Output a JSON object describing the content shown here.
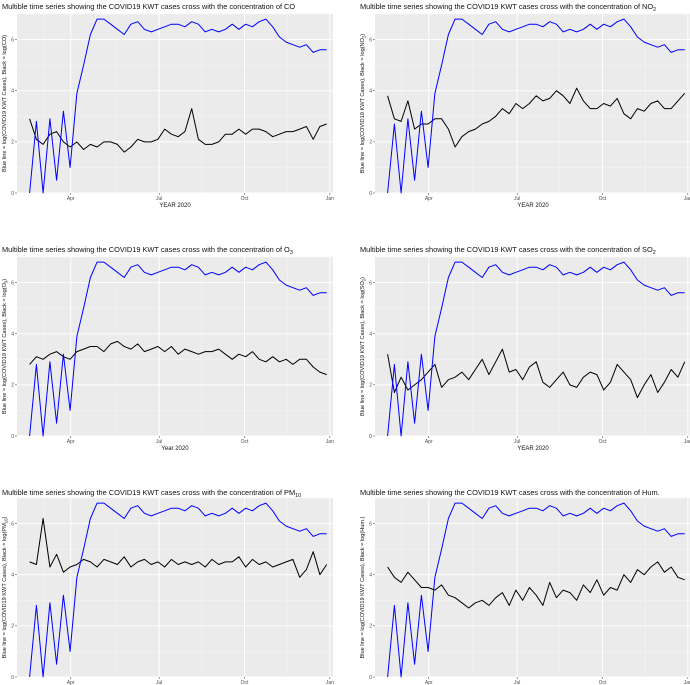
{
  "colors": {
    "panel_bg": "#ebebeb",
    "grid_major": "#ffffff",
    "grid_minor": "#f5f5f5",
    "cases_line": "#0000ff",
    "pollutant_line": "#000000"
  },
  "chart_data": [
    {
      "type": "line",
      "title": "Multible time series showing the COVID19 KWT cases cross with the concentration of CO",
      "xlabel": "YEAR 2020",
      "ylabel": "Blue line = log(COVID19 KWT Cases), Black = log(CO)",
      "x_ticks": [
        "Apr",
        "Jul",
        "Oct",
        "Jan"
      ],
      "y_ticks": [
        "0",
        "2",
        "4",
        "6"
      ],
      "ylim": [
        0,
        7
      ],
      "series": [
        {
          "values": [
            2.9,
            2.1,
            1.9,
            2.3,
            2.4,
            2.0,
            1.8,
            2.0,
            1.7,
            1.9,
            1.8,
            2.0,
            2.0,
            1.9,
            1.6,
            1.8,
            2.1,
            2.0,
            2.0,
            2.1,
            2.5,
            2.3,
            2.2,
            2.4,
            3.3,
            2.1,
            1.9,
            1.9,
            2.0,
            2.3,
            2.3,
            2.5,
            2.3,
            2.5,
            2.5,
            2.4,
            2.2,
            2.3,
            2.4,
            2.4,
            2.5,
            2.6,
            2.1,
            2.6,
            2.7
          ]
        },
        {
          "values": [
            0,
            2.8,
            0,
            2.9,
            0.5,
            3.2,
            1.0,
            3.9,
            5.0,
            6.2,
            6.8,
            6.8,
            6.6,
            6.4,
            6.2,
            6.6,
            6.7,
            6.4,
            6.3,
            6.4,
            6.5,
            6.6,
            6.6,
            6.5,
            6.7,
            6.6,
            6.3,
            6.4,
            6.3,
            6.4,
            6.6,
            6.4,
            6.6,
            6.5,
            6.7,
            6.8,
            6.5,
            6.1,
            5.9,
            5.8,
            5.7,
            5.8,
            5.5,
            5.6,
            5.6
          ]
        }
      ]
    },
    {
      "type": "line",
      "title": "Multible time series showing the COVID19 KWT cases cross with the concentration of NO",
      "title_sub": "2",
      "xlabel": "YEAR 2020",
      "ylabel": "Blue line = log(COVID19 KWT Cases), Black = log(NO",
      "ylabel_sub": "2",
      "ylabel_tail": ")",
      "x_ticks": [
        "Apr",
        "Jul",
        "Oct",
        "Jan"
      ],
      "y_ticks": [
        "0",
        "2",
        "4",
        "6"
      ],
      "ylim": [
        0,
        7
      ],
      "series": [
        {
          "values": [
            3.8,
            2.9,
            2.8,
            3.6,
            2.5,
            2.7,
            2.7,
            2.9,
            2.9,
            2.5,
            1.8,
            2.2,
            2.4,
            2.5,
            2.7,
            2.8,
            3.0,
            3.3,
            3.1,
            3.5,
            3.3,
            3.5,
            3.8,
            3.6,
            3.7,
            4.0,
            3.8,
            3.5,
            4.1,
            3.6,
            3.3,
            3.3,
            3.5,
            3.4,
            3.7,
            3.1,
            2.9,
            3.3,
            3.2,
            3.5,
            3.6,
            3.3,
            3.3,
            3.6,
            3.9
          ]
        },
        {
          "values": [
            0,
            2.7,
            0,
            2.9,
            0.5,
            3.2,
            1.0,
            3.9,
            5.0,
            6.2,
            6.8,
            6.8,
            6.6,
            6.4,
            6.2,
            6.6,
            6.7,
            6.4,
            6.3,
            6.4,
            6.5,
            6.6,
            6.6,
            6.5,
            6.7,
            6.6,
            6.3,
            6.4,
            6.3,
            6.4,
            6.6,
            6.4,
            6.6,
            6.5,
            6.7,
            6.8,
            6.5,
            6.1,
            5.9,
            5.8,
            5.7,
            5.8,
            5.5,
            5.6,
            5.6
          ]
        }
      ]
    },
    {
      "type": "line",
      "title": "Multible time series showing the COVID19 KWT cases cross with the concentration of O",
      "title_sub": "3",
      "xlabel": "Year 2020",
      "ylabel": "Blue line = log(COVID19 KWT Cases), Black = log(O",
      "ylabel_sub": "3",
      "ylabel_tail": ")",
      "x_ticks": [
        "Apr",
        "Jul",
        "Oct",
        "Jan"
      ],
      "y_ticks": [
        "0",
        "2",
        "4",
        "6"
      ],
      "ylim": [
        0,
        7
      ],
      "series": [
        {
          "values": [
            2.8,
            3.1,
            3.0,
            3.2,
            3.3,
            3.1,
            3.0,
            3.3,
            3.4,
            3.5,
            3.5,
            3.3,
            3.6,
            3.7,
            3.5,
            3.4,
            3.6,
            3.3,
            3.4,
            3.5,
            3.3,
            3.5,
            3.2,
            3.4,
            3.3,
            3.2,
            3.3,
            3.3,
            3.4,
            3.2,
            3.0,
            3.2,
            3.1,
            3.3,
            3.0,
            2.9,
            3.1,
            2.9,
            3.0,
            2.8,
            3.0,
            3.0,
            2.7,
            2.5,
            2.4
          ]
        },
        {
          "values": [
            0,
            2.8,
            0,
            2.9,
            0.5,
            3.2,
            1.0,
            3.9,
            5.0,
            6.2,
            6.8,
            6.8,
            6.6,
            6.4,
            6.2,
            6.6,
            6.7,
            6.4,
            6.3,
            6.4,
            6.5,
            6.6,
            6.6,
            6.5,
            6.7,
            6.6,
            6.3,
            6.4,
            6.3,
            6.4,
            6.6,
            6.4,
            6.6,
            6.5,
            6.7,
            6.8,
            6.5,
            6.1,
            5.9,
            5.8,
            5.7,
            5.8,
            5.5,
            5.6,
            5.6
          ]
        }
      ]
    },
    {
      "type": "line",
      "title": "Multible time series showing the COVID19 KWT cases cross with the concentration of SO",
      "title_sub": "2",
      "xlabel": "YEAR 2020",
      "ylabel": "Blue line = log(COVID19 KWT Cases), Black = log(SO",
      "ylabel_sub": "2",
      "ylabel_tail": ")",
      "x_ticks": [
        "Apr",
        "Jul",
        "Oct",
        "Jan"
      ],
      "y_ticks": [
        "0",
        "2",
        "4",
        "6"
      ],
      "ylim": [
        0,
        7
      ],
      "series": [
        {
          "values": [
            3.2,
            1.7,
            2.3,
            1.8,
            2.0,
            2.2,
            2.5,
            2.8,
            1.9,
            2.2,
            2.3,
            2.5,
            2.2,
            2.6,
            3.0,
            2.4,
            2.9,
            3.4,
            2.5,
            2.6,
            2.2,
            2.7,
            2.9,
            2.1,
            1.9,
            2.2,
            2.5,
            2.0,
            1.9,
            2.3,
            2.5,
            2.4,
            1.8,
            2.1,
            2.8,
            2.5,
            2.2,
            1.5,
            2.0,
            2.4,
            1.7,
            2.1,
            2.6,
            2.3,
            2.9
          ]
        },
        {
          "values": [
            0,
            2.8,
            0,
            2.9,
            0.5,
            3.2,
            1.0,
            3.9,
            5.0,
            6.2,
            6.8,
            6.8,
            6.6,
            6.4,
            6.2,
            6.6,
            6.7,
            6.4,
            6.3,
            6.4,
            6.5,
            6.6,
            6.6,
            6.5,
            6.7,
            6.6,
            6.3,
            6.4,
            6.3,
            6.4,
            6.6,
            6.4,
            6.6,
            6.5,
            6.7,
            6.8,
            6.5,
            6.1,
            5.9,
            5.8,
            5.7,
            5.8,
            5.5,
            5.6,
            5.6
          ]
        }
      ]
    },
    {
      "type": "line",
      "title": "Multible time series showing the COVID19 KWT cases cross with the concentration of PM",
      "title_sub": "10",
      "xlabel": "YEAR 2020",
      "ylabel": "Blue line = log(COVID19 KWT Cases), Black = log(PM",
      "ylabel_sub": "10",
      "ylabel_tail": ")",
      "x_ticks": [
        "Apr",
        "Jul",
        "Oct",
        "Jan"
      ],
      "y_ticks": [
        "0",
        "2",
        "4",
        "6"
      ],
      "ylim": [
        0,
        7
      ],
      "series": [
        {
          "values": [
            4.5,
            4.4,
            6.2,
            4.3,
            4.8,
            4.1,
            4.3,
            4.4,
            4.6,
            4.5,
            4.3,
            4.6,
            4.5,
            4.4,
            4.7,
            4.3,
            4.5,
            4.6,
            4.4,
            4.5,
            4.3,
            4.6,
            4.4,
            4.5,
            4.4,
            4.5,
            4.3,
            4.6,
            4.4,
            4.5,
            4.5,
            4.7,
            4.3,
            4.6,
            4.4,
            4.5,
            4.3,
            4.4,
            4.5,
            4.6,
            3.9,
            4.2,
            4.9,
            4.0,
            4.4
          ]
        },
        {
          "values": [
            0,
            2.8,
            0,
            2.9,
            0.5,
            3.2,
            1.0,
            3.9,
            5.0,
            6.2,
            6.8,
            6.8,
            6.6,
            6.4,
            6.2,
            6.6,
            6.7,
            6.4,
            6.3,
            6.4,
            6.5,
            6.6,
            6.6,
            6.5,
            6.7,
            6.6,
            6.3,
            6.4,
            6.3,
            6.4,
            6.6,
            6.4,
            6.6,
            6.5,
            6.7,
            6.8,
            6.5,
            6.1,
            5.9,
            5.8,
            5.7,
            5.8,
            5.5,
            5.6,
            5.6
          ]
        }
      ]
    },
    {
      "type": "line",
      "title": "Multible time series showing the COVID19 KWT cases cross with the concentration of Hum.",
      "xlabel": "YEAR 2020",
      "ylabel": "Blue line = log(COVID19 KWT Cases), Black = log(Hum.)",
      "x_ticks": [
        "Apr",
        "Jul",
        "Oct",
        "Jan"
      ],
      "y_ticks": [
        "0",
        "2",
        "4",
        "6"
      ],
      "ylim": [
        0,
        7
      ],
      "series": [
        {
          "values": [
            4.3,
            3.9,
            3.7,
            4.1,
            3.8,
            3.5,
            3.5,
            3.4,
            3.6,
            3.2,
            3.1,
            2.9,
            2.7,
            2.9,
            3.0,
            2.8,
            3.1,
            3.3,
            2.8,
            3.4,
            3.0,
            3.5,
            3.2,
            2.8,
            3.7,
            3.1,
            3.4,
            3.3,
            3.0,
            3.6,
            3.3,
            3.8,
            3.2,
            3.5,
            3.4,
            4.0,
            3.7,
            4.2,
            4.0,
            4.3,
            4.5,
            4.1,
            4.3,
            3.9,
            3.8
          ]
        },
        {
          "values": [
            0,
            2.8,
            0,
            2.9,
            0.5,
            3.2,
            1.0,
            3.9,
            5.0,
            6.2,
            6.8,
            6.8,
            6.6,
            6.4,
            6.2,
            6.6,
            6.7,
            6.4,
            6.3,
            6.4,
            6.5,
            6.6,
            6.6,
            6.5,
            6.7,
            6.6,
            6.3,
            6.4,
            6.3,
            6.4,
            6.6,
            6.4,
            6.6,
            6.5,
            6.7,
            6.8,
            6.5,
            6.1,
            5.9,
            5.8,
            5.7,
            5.8,
            5.5,
            5.6,
            5.6
          ]
        }
      ]
    }
  ]
}
